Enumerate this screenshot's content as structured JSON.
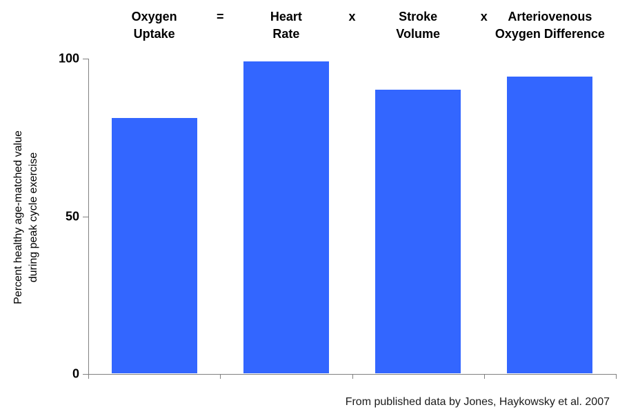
{
  "chart_data": {
    "type": "bar",
    "title": "",
    "categories": [
      "Oxygen Uptake",
      "Heart Rate",
      "Stroke Volume",
      "Arteriovenous Oxygen Difference"
    ],
    "categories_lines": [
      [
        "Oxygen",
        "Uptake"
      ],
      [
        "Heart",
        "Rate"
      ],
      [
        "Stroke",
        "Volume"
      ],
      [
        "Arteriovenous",
        "Oxygen Difference"
      ]
    ],
    "operators_between": [
      "=",
      "x",
      "x"
    ],
    "values": [
      81,
      99,
      90,
      94
    ],
    "xlabel": "",
    "ylabel": "Percent healthy age-matched value during peak cycle exercise",
    "ylabel_lines": [
      "Percent healthy age-matched value",
      "during peak cycle exercise"
    ],
    "yticks": [
      0,
      50,
      100
    ],
    "ylim": [
      0,
      100
    ],
    "grid": false,
    "legend_position": "none",
    "bar_color": "#3366FF",
    "axis_color": "#808080",
    "caption": "From published data by Jones, Haykowsky et al. 2007"
  }
}
